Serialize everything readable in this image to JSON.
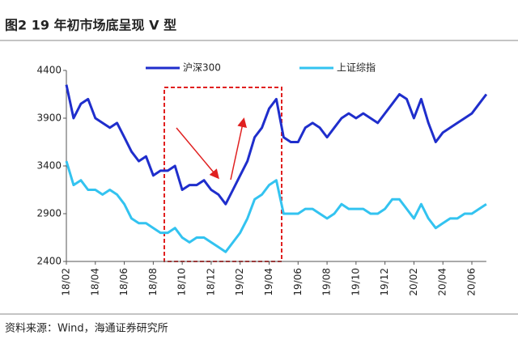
{
  "chart_data": {
    "type": "line",
    "title": "图2  19 年初市场底呈现 V 型",
    "source": "资料来源：Wind，海通证券研究所",
    "categories": [
      "18/02",
      null,
      null,
      null,
      "18/04",
      null,
      null,
      null,
      "18/06",
      null,
      null,
      null,
      "18/08",
      null,
      null,
      null,
      "18/10",
      null,
      null,
      null,
      "18/12",
      null,
      null,
      null,
      "19/02",
      null,
      null,
      null,
      "19/04",
      null,
      null,
      null,
      "19/06",
      null,
      null,
      null,
      "19/08",
      null,
      null,
      null,
      "19/10",
      null,
      null,
      null,
      "19/12",
      null,
      null,
      null,
      "20/02",
      null,
      null,
      null,
      "20/04",
      null,
      null,
      null,
      "20/06",
      null,
      null
    ],
    "series": [
      {
        "name": "沪深300",
        "color": "#1f2ecc",
        "values": [
          4250,
          3900,
          4050,
          4100,
          3900,
          3850,
          3800,
          3850,
          3700,
          3550,
          3450,
          3500,
          3300,
          3350,
          3350,
          3400,
          3150,
          3200,
          3200,
          3250,
          3150,
          3100,
          3000,
          3150,
          3300,
          3450,
          3700,
          3800,
          4000,
          4100,
          3700,
          3650,
          3650,
          3800,
          3850,
          3800,
          3700,
          3800,
          3900,
          3950,
          3900,
          3950,
          3900,
          3850,
          3950,
          4050,
          4150,
          4100,
          3900,
          4100,
          3850,
          3650,
          3750,
          3800,
          3850,
          3900,
          3950,
          4050,
          4150
        ]
      },
      {
        "name": "上证综指",
        "color": "#33c3f0",
        "values": [
          3450,
          3200,
          3250,
          3150,
          3150,
          3100,
          3150,
          3100,
          3000,
          2850,
          2800,
          2800,
          2750,
          2700,
          2700,
          2750,
          2650,
          2600,
          2650,
          2650,
          2600,
          2550,
          2500,
          2600,
          2700,
          2850,
          3050,
          3100,
          3200,
          3250,
          2900,
          2900,
          2900,
          2950,
          2950,
          2900,
          2850,
          2900,
          3000,
          2950,
          2950,
          2950,
          2900,
          2900,
          2950,
          3050,
          3050,
          2950,
          2850,
          3000,
          2850,
          2750,
          2800,
          2850,
          2850,
          2900,
          2900,
          2950,
          3000
        ]
      }
    ],
    "ylim": [
      2400,
      4400
    ],
    "yticks": [
      2400,
      2900,
      3400,
      3900,
      4400
    ],
    "grid": false,
    "legend": "top"
  }
}
